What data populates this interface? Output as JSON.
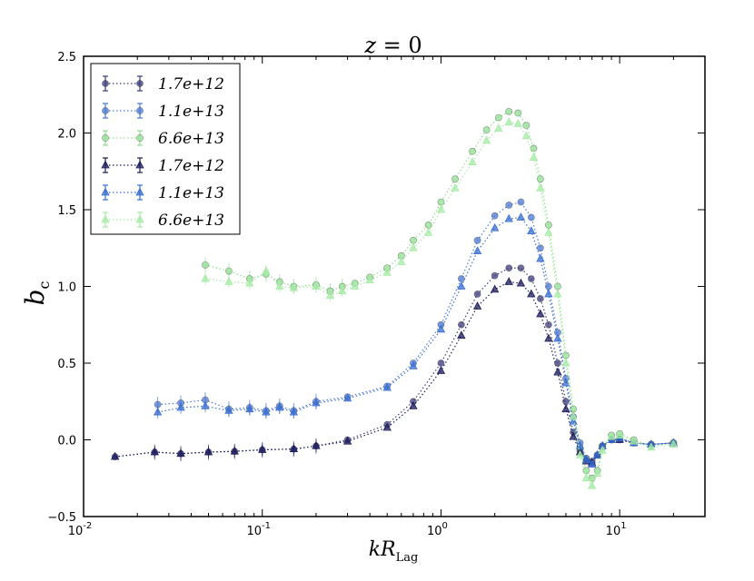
{
  "chart_data": {
    "type": "line",
    "title": "z = 0",
    "title_math": "z",
    "title_rest": "= 0",
    "xlabel": "kR",
    "xlabel_sub": "Lag",
    "ylabel": "b",
    "ylabel_sub": "c",
    "xscale": "log",
    "xlim": [
      0.01,
      30
    ],
    "ylim": [
      -0.5,
      2.5
    ],
    "x_ticks": [
      {
        "value": 0.01,
        "label": "10",
        "exp": "-2"
      },
      {
        "value": 0.1,
        "label": "10",
        "exp": "-1"
      },
      {
        "value": 1,
        "label": "10",
        "exp": "0"
      },
      {
        "value": 10,
        "label": "10",
        "exp": "1"
      }
    ],
    "y_ticks": [
      {
        "value": -0.5,
        "label": "−0.5"
      },
      {
        "value": 0.0,
        "label": "0.0"
      },
      {
        "value": 0.5,
        "label": "0.5"
      },
      {
        "value": 1.0,
        "label": "1.0"
      },
      {
        "value": 1.5,
        "label": "1.5"
      },
      {
        "value": 2.0,
        "label": "2.0"
      },
      {
        "value": 2.5,
        "label": "2.5"
      }
    ],
    "legend": {
      "location": "top-left"
    },
    "series": [
      {
        "name": "1.7e+12",
        "color": "#3c3c7c",
        "marker": "circle",
        "x": [
          0.015,
          0.025,
          0.035,
          0.05,
          0.07,
          0.1,
          0.15,
          0.2,
          0.3,
          0.5,
          0.7,
          1.0,
          1.3,
          1.6,
          2.0,
          2.4,
          2.8,
          3.2,
          3.6,
          4.0,
          4.5,
          5.0,
          5.5,
          6.0,
          6.5,
          7.0,
          7.5,
          8.0,
          9.0,
          10,
          12,
          15,
          20
        ],
        "y": [
          -0.11,
          -0.08,
          -0.09,
          -0.08,
          -0.075,
          -0.065,
          -0.06,
          -0.04,
          0.0,
          0.1,
          0.25,
          0.5,
          0.75,
          0.95,
          1.07,
          1.12,
          1.12,
          1.05,
          0.92,
          0.75,
          0.5,
          0.25,
          0.05,
          -0.07,
          -0.13,
          -0.14,
          -0.1,
          -0.04,
          0.0,
          0.0,
          -0.02,
          -0.03,
          -0.02
        ]
      },
      {
        "name": "1.1e+13",
        "color": "#4a78d6",
        "marker": "circle",
        "x": [
          0.026,
          0.035,
          0.048,
          0.065,
          0.085,
          0.105,
          0.125,
          0.15,
          0.2,
          0.3,
          0.5,
          0.7,
          1.0,
          1.3,
          1.6,
          2.0,
          2.4,
          2.8,
          3.2,
          3.6,
          4.0,
          4.5,
          5.0,
          5.5,
          6.0,
          6.5,
          7.0,
          7.5,
          8.0,
          9.0,
          10,
          12,
          15,
          20
        ],
        "y": [
          0.23,
          0.24,
          0.26,
          0.2,
          0.21,
          0.19,
          0.22,
          0.19,
          0.25,
          0.28,
          0.35,
          0.5,
          0.75,
          1.05,
          1.3,
          1.46,
          1.53,
          1.55,
          1.45,
          1.25,
          1.0,
          0.7,
          0.4,
          0.15,
          -0.02,
          -0.12,
          -0.15,
          -0.1,
          -0.04,
          0.0,
          0.01,
          -0.02,
          -0.03,
          -0.02
        ]
      },
      {
        "name": "6.6e+13",
        "color": "#8fe08f",
        "marker": "circle",
        "x": [
          0.048,
          0.065,
          0.085,
          0.105,
          0.125,
          0.15,
          0.2,
          0.24,
          0.28,
          0.33,
          0.4,
          0.5,
          0.6,
          0.7,
          0.85,
          1.0,
          1.2,
          1.5,
          1.8,
          2.1,
          2.4,
          2.7,
          3.0,
          3.3,
          3.6,
          4.0,
          4.5,
          5.0,
          5.5,
          6.0,
          6.5,
          7.0,
          7.5,
          8.0,
          9.0,
          10,
          12,
          15,
          20
        ],
        "y": [
          1.14,
          1.1,
          1.05,
          1.08,
          1.03,
          1.0,
          1.01,
          0.97,
          1.0,
          1.02,
          1.06,
          1.12,
          1.2,
          1.3,
          1.4,
          1.55,
          1.7,
          1.88,
          2.02,
          2.1,
          2.14,
          2.13,
          2.05,
          1.9,
          1.7,
          1.4,
          1.0,
          0.55,
          0.2,
          -0.05,
          -0.2,
          -0.25,
          -0.2,
          -0.05,
          0.03,
          0.04,
          0.0,
          -0.04,
          -0.02
        ]
      },
      {
        "name": "1.7e+12",
        "color": "#1c1c5c",
        "marker": "triangle",
        "x": [
          0.015,
          0.025,
          0.035,
          0.05,
          0.07,
          0.1,
          0.15,
          0.2,
          0.3,
          0.5,
          0.7,
          1.0,
          1.3,
          1.6,
          2.0,
          2.4,
          2.8,
          3.2,
          3.6,
          4.0,
          4.5,
          5.0,
          5.5,
          6.0,
          6.5,
          7.0,
          7.5,
          8.0,
          9.0,
          10,
          12,
          15,
          20
        ],
        "y": [
          -0.11,
          -0.08,
          -0.09,
          -0.08,
          -0.075,
          -0.065,
          -0.06,
          -0.04,
          -0.01,
          0.08,
          0.22,
          0.45,
          0.68,
          0.87,
          0.98,
          1.03,
          1.02,
          0.95,
          0.82,
          0.66,
          0.44,
          0.2,
          0.02,
          -0.08,
          -0.14,
          -0.15,
          -0.1,
          -0.04,
          0.0,
          0.0,
          -0.02,
          -0.03,
          -0.02
        ]
      },
      {
        "name": "1.1e+13",
        "color": "#3a6fd0",
        "marker": "triangle",
        "x": [
          0.026,
          0.035,
          0.048,
          0.065,
          0.085,
          0.105,
          0.125,
          0.15,
          0.2,
          0.3,
          0.5,
          0.7,
          1.0,
          1.3,
          1.6,
          2.0,
          2.4,
          2.8,
          3.2,
          3.6,
          4.0,
          4.5,
          5.0,
          5.5,
          6.0,
          6.5,
          7.0,
          7.5,
          8.0,
          9.0,
          10,
          12,
          15,
          20
        ],
        "y": [
          0.18,
          0.21,
          0.22,
          0.19,
          0.2,
          0.18,
          0.21,
          0.18,
          0.24,
          0.27,
          0.34,
          0.48,
          0.72,
          1.0,
          1.23,
          1.38,
          1.44,
          1.45,
          1.36,
          1.18,
          0.95,
          0.66,
          0.37,
          0.12,
          -0.04,
          -0.13,
          -0.16,
          -0.1,
          -0.04,
          0.0,
          0.01,
          -0.02,
          -0.03,
          -0.02
        ]
      },
      {
        "name": "6.6e+13",
        "color": "#a6eba6",
        "marker": "triangle",
        "x": [
          0.048,
          0.065,
          0.085,
          0.105,
          0.125,
          0.15,
          0.2,
          0.24,
          0.28,
          0.33,
          0.4,
          0.5,
          0.6,
          0.7,
          0.85,
          1.0,
          1.2,
          1.5,
          1.8,
          2.1,
          2.4,
          2.7,
          3.0,
          3.3,
          3.6,
          4.0,
          4.5,
          5.0,
          5.5,
          6.0,
          6.5,
          7.0,
          7.5,
          8.0,
          9.0,
          10,
          12,
          15,
          20
        ],
        "y": [
          1.05,
          1.03,
          1.02,
          1.1,
          1.0,
          0.99,
          1.0,
          0.94,
          0.97,
          1.0,
          1.04,
          1.09,
          1.16,
          1.25,
          1.35,
          1.5,
          1.64,
          1.81,
          1.95,
          2.03,
          2.07,
          2.06,
          1.98,
          1.84,
          1.64,
          1.35,
          0.95,
          0.5,
          0.15,
          -0.1,
          -0.25,
          -0.3,
          -0.22,
          -0.07,
          0.02,
          0.03,
          -0.01,
          -0.05,
          -0.03
        ]
      }
    ]
  }
}
